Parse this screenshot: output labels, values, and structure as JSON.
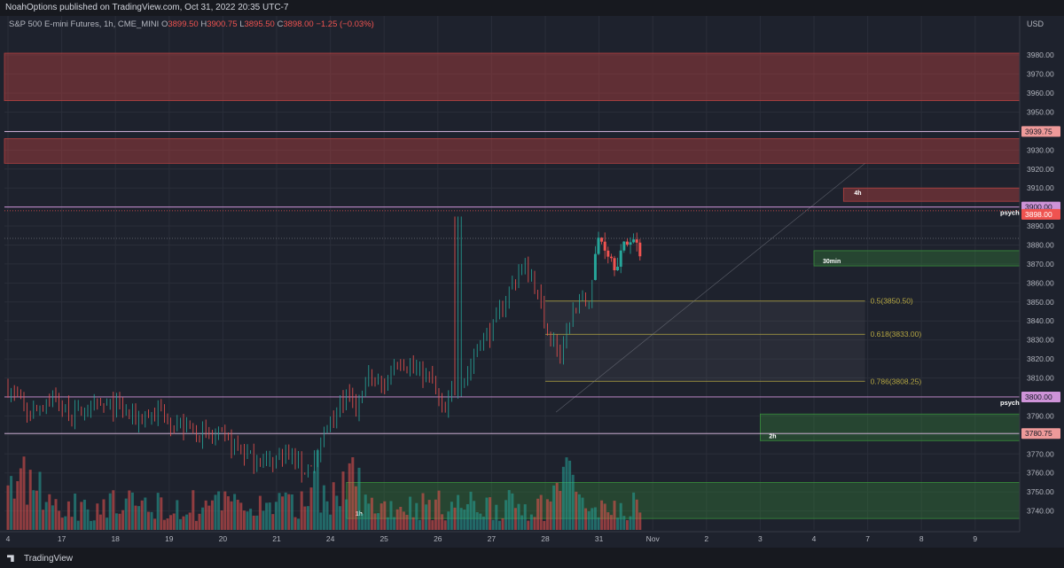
{
  "publisher": "NoahOptions published on TradingView.com, Oct 31, 2022 20:35 UTC-7",
  "legend": {
    "symbol": "S&P 500 E-mini Futures, 1h, CME_MINI",
    "o_label": "O",
    "o": "3899.50",
    "h_label": "H",
    "h": "3900.75",
    "l_label": "L",
    "l": "3895.50",
    "c_label": "C",
    "c": "3898.00",
    "change": "−1.25 (−0.03%)"
  },
  "currency": "USD",
  "brand": "TradingView",
  "colors": {
    "background": "#1e222d",
    "up": "#26a69a",
    "down": "#ef5350",
    "supply_zone": "rgba(178,65,65,0.45)",
    "demand_zone": "rgba(56,142,60,0.32)",
    "fib_line": "#b5a642",
    "psych_line": "#ce93d8",
    "level_line": "#e1bee7"
  },
  "chart_data": {
    "type": "candlestick",
    "title": "S&P 500 E-mini Futures, 1h, CME_MINI",
    "xlabel": "",
    "ylabel": "",
    "ylim": [
      3730,
      3995
    ],
    "grid": true,
    "y_ticks": [
      3740,
      3750,
      3760,
      3770,
      3780,
      3790,
      3800,
      3810,
      3820,
      3830,
      3840,
      3850,
      3860,
      3870,
      3880,
      3890,
      3900,
      3910,
      3920,
      3930,
      3940,
      3950,
      3960,
      3970,
      3980
    ],
    "y_tick_labels": [
      "3740.00",
      "3750.00",
      "3760.00",
      "3770.00",
      "3780.00",
      "3790.00",
      "3800.00",
      "3810.00",
      "3820.00",
      "3830.00",
      "3840.00",
      "3850.00",
      "3860.00",
      "3870.00",
      "3880.00",
      "3890.00",
      "3900.00",
      "3910.00",
      "3920.00",
      "3930.00",
      "3940.00",
      "3950.00",
      "3960.00",
      "3970.00",
      "3980.00"
    ],
    "x_ticks": [
      {
        "label": "4",
        "day": 0
      },
      {
        "label": "17",
        "day": 1
      },
      {
        "label": "18",
        "day": 2
      },
      {
        "label": "19",
        "day": 3
      },
      {
        "label": "20",
        "day": 4
      },
      {
        "label": "21",
        "day": 5
      },
      {
        "label": "24",
        "day": 6
      },
      {
        "label": "25",
        "day": 7
      },
      {
        "label": "26",
        "day": 8
      },
      {
        "label": "27",
        "day": 9
      },
      {
        "label": "28",
        "day": 10
      },
      {
        "label": "31",
        "day": 11
      },
      {
        "label": "Nov",
        "day": 12
      },
      {
        "label": "2",
        "day": 13
      },
      {
        "label": "3",
        "day": 14
      },
      {
        "label": "4",
        "day": 15
      },
      {
        "label": "7",
        "day": 16
      },
      {
        "label": "8",
        "day": 17
      },
      {
        "label": "9",
        "day": 18
      }
    ],
    "price_anchors": [
      [
        0,
        3805
      ],
      [
        0.4,
        3790
      ],
      [
        0.8,
        3800
      ],
      [
        1.2,
        3790
      ],
      [
        1.6,
        3795
      ],
      [
        2.0,
        3795
      ],
      [
        2.4,
        3788
      ],
      [
        2.8,
        3792
      ],
      [
        3.2,
        3785
      ],
      [
        3.6,
        3780
      ],
      [
        4.0,
        3778
      ],
      [
        4.4,
        3770
      ],
      [
        4.8,
        3765
      ],
      [
        5.2,
        3770
      ],
      [
        5.5,
        3760
      ],
      [
        5.8,
        3772
      ],
      [
        6.0,
        3790
      ],
      [
        6.3,
        3800
      ],
      [
        6.5,
        3792
      ],
      [
        6.7,
        3810
      ],
      [
        7.0,
        3805
      ],
      [
        7.2,
        3820
      ],
      [
        7.4,
        3818
      ],
      [
        7.6,
        3815
      ],
      [
        7.9,
        3808
      ],
      [
        8.1,
        3790
      ],
      [
        8.3,
        3805
      ],
      [
        8.5,
        3810
      ],
      [
        8.8,
        3830
      ],
      [
        9.0,
        3835
      ],
      [
        9.3,
        3855
      ],
      [
        9.6,
        3870
      ],
      [
        9.8,
        3860
      ],
      [
        10.0,
        3838
      ],
      [
        10.3,
        3820
      ],
      [
        10.5,
        3845
      ],
      [
        10.8,
        3850
      ],
      [
        11.0,
        3885
      ],
      [
        11.3,
        3870
      ],
      [
        11.6,
        3885
      ],
      [
        11.9,
        3870
      ],
      [
        12.1,
        3885
      ],
      [
        12.4,
        3870
      ],
      [
        12.6,
        3860
      ],
      [
        12.9,
        3850
      ],
      [
        13.2,
        3845
      ],
      [
        13.4,
        3820
      ],
      [
        13.6,
        3808
      ],
      [
        13.8,
        3815
      ],
      [
        14.0,
        3795
      ],
      [
        14.2,
        3800
      ],
      [
        14.4,
        3830
      ],
      [
        14.6,
        3860
      ],
      [
        14.8,
        3880
      ],
      [
        15.0,
        3895
      ],
      [
        15.2,
        3905
      ],
      [
        15.3,
        3915
      ],
      [
        15.5,
        3905
      ],
      [
        15.8,
        3910
      ],
      [
        16.0,
        3900
      ],
      [
        16.2,
        3905
      ],
      [
        16.5,
        3885
      ],
      [
        16.7,
        3878
      ],
      [
        16.9,
        3890
      ],
      [
        17.1,
        3885
      ],
      [
        17.3,
        3890
      ],
      [
        17.5,
        3898
      ]
    ],
    "psych_levels": [
      {
        "price": 3900.0,
        "label": "psych"
      },
      {
        "price": 3800.0,
        "label": "psych"
      }
    ],
    "levels": [
      3939.75,
      3780.75
    ],
    "last_price": "3898.00",
    "axis_badges": [
      {
        "price": 3939.75,
        "label": "3939.75"
      },
      {
        "price": 3900.0,
        "label": "3900.00"
      },
      {
        "price": 3898.0,
        "label": "3898.00"
      },
      {
        "price": 3800.0,
        "label": "3800.00"
      },
      {
        "price": 3780.75,
        "label": "3780.75"
      }
    ],
    "supply_zones": [
      {
        "top": 3981,
        "bottom": 3956
      },
      {
        "top": 3936,
        "bottom": 3923
      },
      {
        "top": 3910,
        "bottom": 3903,
        "label": "4h"
      }
    ],
    "demand_zones": [
      {
        "top": 3877,
        "bottom": 3869,
        "label": "30min"
      },
      {
        "top": 3791,
        "bottom": 3777,
        "label": "2h"
      },
      {
        "top": 3755,
        "bottom": 3736,
        "label": "1h"
      }
    ],
    "fib_levels": [
      {
        "price": 3850.5,
        "label": "0.5(3850.50)"
      },
      {
        "price": 3833.0,
        "label": "0.618(3833.00)"
      },
      {
        "price": 3808.25,
        "label": "0.786(3808.25)"
      }
    ]
  }
}
